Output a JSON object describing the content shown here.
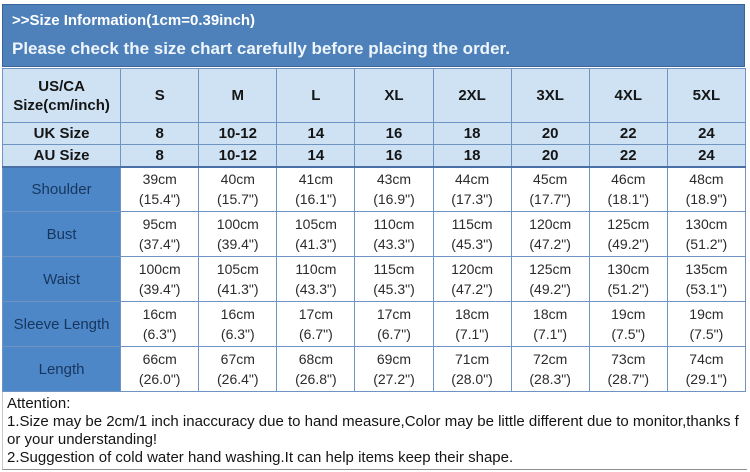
{
  "header": {
    "title": ">>Size Information(1cm=0.39inch)",
    "subtitle": "Please check the size chart carefully before placing the order."
  },
  "table": {
    "corner_header_line1": "US/CA",
    "corner_header_line2": "Size(cm/inch)",
    "size_columns": [
      "S",
      "M",
      "L",
      "XL",
      "2XL",
      "3XL",
      "4XL",
      "5XL"
    ],
    "size_rows": [
      {
        "label": "UK Size",
        "values": [
          "8",
          "10-12",
          "14",
          "16",
          "18",
          "20",
          "22",
          "24"
        ]
      },
      {
        "label": "AU Size",
        "values": [
          "8",
          "10-12",
          "14",
          "16",
          "18",
          "20",
          "22",
          "24"
        ]
      }
    ],
    "measurement_rows": [
      {
        "label": "Shoulder",
        "values_cm": [
          "39cm",
          "40cm",
          "41cm",
          "43cm",
          "44cm",
          "45cm",
          "46cm",
          "48cm"
        ],
        "values_inch": [
          "(15.4\")",
          "(15.7\")",
          "(16.1\")",
          "(16.9\")",
          "(17.3\")",
          "(17.7\")",
          "(18.1\")",
          "(18.9\")"
        ]
      },
      {
        "label": "Bust",
        "values_cm": [
          "95cm",
          "100cm",
          "105cm",
          "110cm",
          "115cm",
          "120cm",
          "125cm",
          "130cm"
        ],
        "values_inch": [
          "(37.4\")",
          "(39.4\")",
          "(41.3\")",
          "(43.3\")",
          "(45.3\")",
          "(47.2\")",
          "(49.2\")",
          "(51.2\")"
        ]
      },
      {
        "label": "Waist",
        "values_cm": [
          "100cm",
          "105cm",
          "110cm",
          "115cm",
          "120cm",
          "125cm",
          "130cm",
          "135cm"
        ],
        "values_inch": [
          "(39.4\")",
          "(41.3\")",
          "(43.3\")",
          "(45.3\")",
          "(47.2\")",
          "(49.2\")",
          "(51.2\")",
          "(53.1\")"
        ]
      },
      {
        "label": "Sleeve Length",
        "values_cm": [
          "16cm",
          "16cm",
          "17cm",
          "17cm",
          "18cm",
          "18cm",
          "19cm",
          "19cm"
        ],
        "values_inch": [
          "(6.3\")",
          "(6.3\")",
          "(6.7\")",
          "(6.7\")",
          "(7.1\")",
          "(7.1\")",
          "(7.5\")",
          "(7.5\")"
        ]
      },
      {
        "label": "Length",
        "values_cm": [
          "66cm",
          "67cm",
          "68cm",
          "69cm",
          "71cm",
          "72cm",
          "73cm",
          "74cm"
        ],
        "values_inch": [
          "(26.0\")",
          "(26.4\")",
          "(26.8\")",
          "(27.2\")",
          "(28.0\")",
          "(28.3\")",
          "(28.7\")",
          "(29.1\")"
        ]
      }
    ]
  },
  "notes": {
    "title": "Attention:",
    "items": [
      "1.Size may be 2cm/1 inch inaccuracy due to hand measure,Color may be little different due to monitor,thanks for your understanding!",
      "2.Suggestion of cold water hand washing.It can help items keep their shape."
    ]
  },
  "colors": {
    "banner_blue": "#4e80ba",
    "header_light_blue": "#cfe2f3",
    "row_label_blue": "#4d87c7",
    "table_border": "#6f94c4",
    "banner_text": "#ffffff",
    "label_text": "#17365d"
  }
}
